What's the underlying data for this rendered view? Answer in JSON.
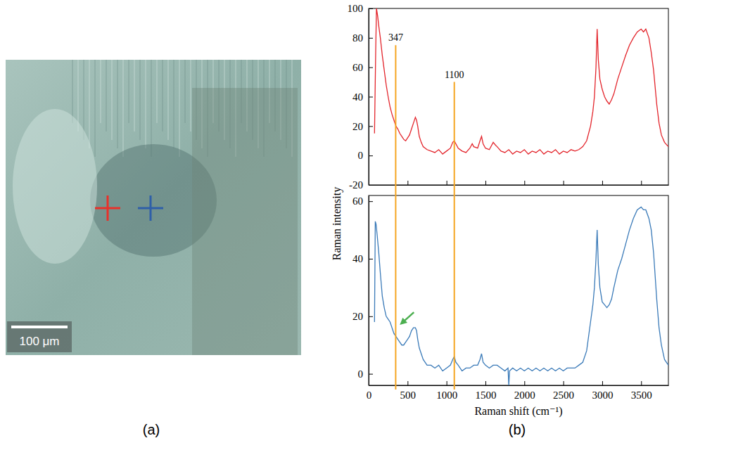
{
  "panel_labels": [
    "(a)",
    "(b)"
  ],
  "micrograph": {
    "scale_bar": "100 μm",
    "markers": [
      {
        "color": "#e8312a"
      },
      {
        "color": "#2f5fa8"
      }
    ]
  },
  "chart_data": [
    {
      "type": "line",
      "color": "#e3242b",
      "tick_labels": "y",
      "xlim": [
        0,
        3850
      ],
      "xticks": [
        0,
        500,
        1000,
        1500,
        2000,
        2500,
        3000,
        3500
      ],
      "ylim": [
        -20,
        100
      ],
      "yticks": [
        -20,
        0,
        20,
        40,
        60,
        80,
        100
      ],
      "annotations": [
        {
          "x": 347,
          "y": 75,
          "label": "347",
          "color": "#f5a623"
        },
        {
          "x": 1100,
          "y": 50,
          "label": "1100",
          "color": "#f5a623"
        }
      ],
      "x": [
        75,
        90,
        100,
        115,
        130,
        150,
        175,
        200,
        225,
        250,
        275,
        300,
        325,
        350,
        375,
        400,
        425,
        450,
        475,
        500,
        525,
        550,
        575,
        600,
        615,
        630,
        650,
        675,
        700,
        750,
        800,
        850,
        900,
        950,
        1000,
        1050,
        1080,
        1100,
        1120,
        1150,
        1200,
        1250,
        1300,
        1330,
        1350,
        1400,
        1430,
        1450,
        1470,
        1500,
        1550,
        1600,
        1630,
        1650,
        1700,
        1750,
        1800,
        1850,
        1900,
        1950,
        2000,
        2050,
        2100,
        2150,
        2200,
        2250,
        2300,
        2350,
        2400,
        2450,
        2500,
        2550,
        2600,
        2650,
        2700,
        2750,
        2800,
        2850,
        2880,
        2900,
        2920,
        2935,
        2950,
        2970,
        3000,
        3030,
        3060,
        3090,
        3120,
        3150,
        3200,
        3250,
        3300,
        3350,
        3400,
        3450,
        3500,
        3530,
        3560,
        3600,
        3630,
        3660,
        3700,
        3730,
        3760,
        3800,
        3850
      ],
      "values": [
        15,
        70,
        100,
        95,
        88,
        80,
        68,
        58,
        48,
        40,
        33,
        28,
        24,
        20,
        18,
        15,
        13,
        11,
        10,
        12,
        14,
        18,
        22,
        26,
        24,
        20,
        13,
        9,
        6,
        4,
        3,
        2,
        4,
        1,
        3,
        5,
        9,
        10,
        8,
        5,
        3,
        2,
        5,
        8,
        6,
        5,
        10,
        13,
        8,
        5,
        4,
        9,
        7,
        6,
        3,
        2,
        4,
        1,
        3,
        2,
        4,
        1,
        3,
        2,
        4,
        1,
        3,
        2,
        4,
        1,
        3,
        2,
        4,
        3,
        4,
        6,
        10,
        20,
        30,
        40,
        60,
        86,
        65,
        52,
        45,
        40,
        37,
        35,
        38,
        42,
        52,
        60,
        68,
        75,
        80,
        84,
        86,
        84,
        86,
        80,
        70,
        58,
        35,
        22,
        14,
        9,
        6
      ]
    },
    {
      "type": "line",
      "color": "#3a7ab8",
      "x_label": "Raman shift (cm⁻¹)",
      "y_label": "Raman intensity",
      "xlim": [
        0,
        3850
      ],
      "xticks": [
        0,
        500,
        1000,
        1500,
        2000,
        2500,
        3000,
        3500
      ],
      "ylim": [
        -4,
        62
      ],
      "yticks": [
        0,
        20,
        40,
        60
      ],
      "arrow": {
        "x": 400,
        "y": 17,
        "color": "#4caf50"
      },
      "x": [
        75,
        85,
        95,
        110,
        130,
        150,
        175,
        200,
        225,
        250,
        275,
        300,
        325,
        350,
        375,
        400,
        425,
        450,
        475,
        500,
        525,
        550,
        575,
        600,
        615,
        630,
        650,
        675,
        700,
        750,
        800,
        850,
        900,
        950,
        1000,
        1050,
        1080,
        1100,
        1120,
        1150,
        1200,
        1250,
        1300,
        1350,
        1400,
        1430,
        1450,
        1470,
        1500,
        1550,
        1600,
        1650,
        1700,
        1750,
        1790,
        1800,
        1810,
        1850,
        1900,
        1950,
        2000,
        2050,
        2100,
        2150,
        2200,
        2250,
        2300,
        2350,
        2400,
        2450,
        2500,
        2550,
        2600,
        2650,
        2700,
        2750,
        2800,
        2850,
        2880,
        2900,
        2920,
        2935,
        2950,
        2970,
        3000,
        3030,
        3060,
        3090,
        3120,
        3150,
        3200,
        3250,
        3300,
        3350,
        3400,
        3450,
        3500,
        3530,
        3560,
        3600,
        3630,
        3660,
        3700,
        3730,
        3760,
        3800,
        3850
      ],
      "values": [
        18,
        53,
        52,
        48,
        42,
        35,
        27,
        23,
        20,
        19,
        18,
        16,
        14,
        13,
        12,
        11,
        10,
        10,
        11,
        12,
        13,
        15,
        16,
        16,
        15,
        12,
        9,
        7,
        5,
        3,
        3,
        2,
        3,
        1,
        2,
        3,
        5,
        6,
        4,
        3,
        1,
        2,
        2,
        3,
        3,
        5,
        7,
        4,
        3,
        2,
        3,
        3,
        2,
        1,
        2,
        -4,
        1,
        2,
        1,
        2,
        1,
        2,
        1,
        2,
        1,
        2,
        1,
        2,
        1,
        2,
        1,
        2,
        2,
        2,
        3,
        4,
        8,
        18,
        24,
        30,
        40,
        50,
        38,
        30,
        25,
        24,
        23,
        24,
        26,
        30,
        36,
        40,
        45,
        50,
        54,
        57,
        58,
        57,
        57,
        54,
        50,
        42,
        26,
        16,
        10,
        5,
        3
      ]
    }
  ]
}
